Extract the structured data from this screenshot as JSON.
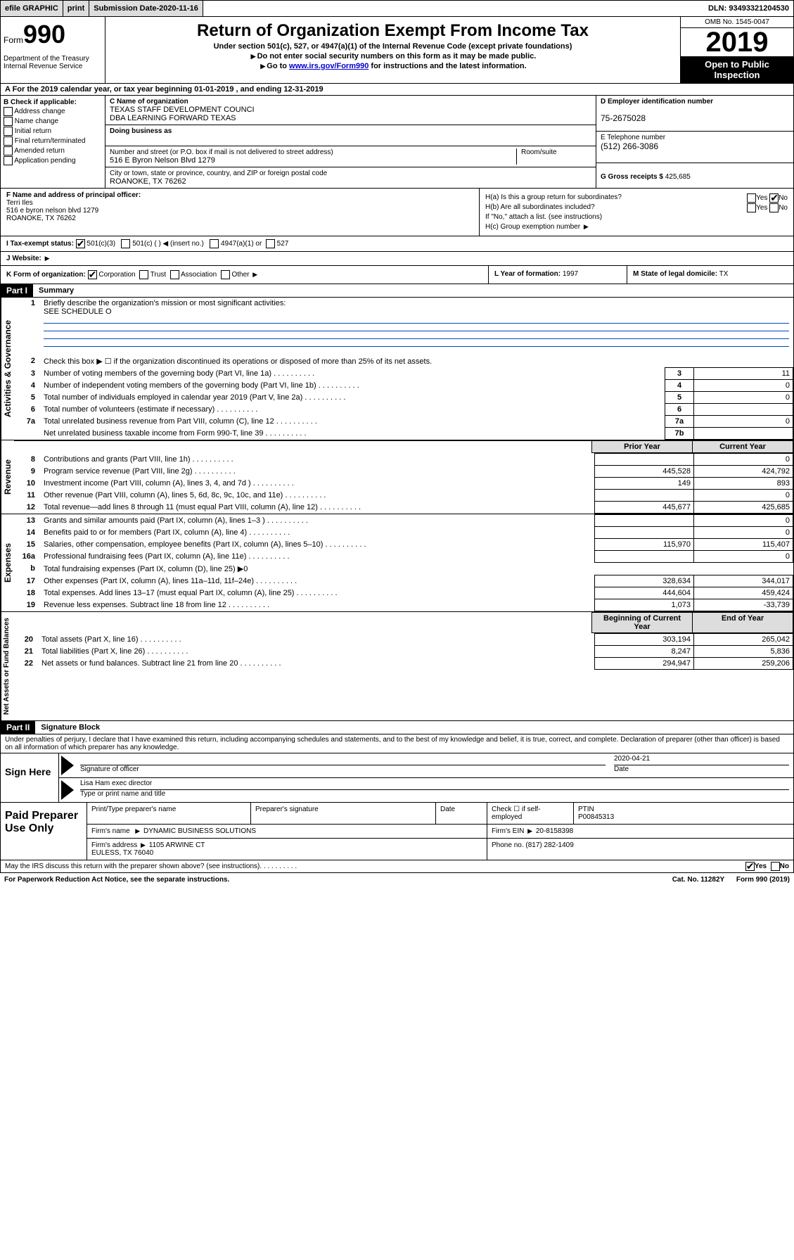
{
  "topBar": {
    "efile": "efile GRAPHIC",
    "print": "print",
    "subLabel": "Submission Date",
    "subDate": "2020-11-16",
    "dln": "DLN: 93493321204530"
  },
  "header": {
    "formWord": "Form",
    "formNum": "990",
    "dept": "Department of the Treasury\nInternal Revenue Service",
    "title": "Return of Organization Exempt From Income Tax",
    "sub1": "Under section 501(c), 527, or 4947(a)(1) of the Internal Revenue Code (except private foundations)",
    "sub2": "Do not enter social security numbers on this form as it may be made public.",
    "sub3a": "Go to ",
    "sub3link": "www.irs.gov/Form990",
    "sub3b": " for instructions and the latest information.",
    "omb": "OMB No. 1545-0047",
    "year": "2019",
    "inspect1": "Open to Public",
    "inspect2": "Inspection"
  },
  "periodRow": {
    "a": "A For the 2019 calendar year, or tax year beginning ",
    "begin": "01-01-2019",
    "mid": " , and ending ",
    "end": "12-31-2019"
  },
  "boxB": {
    "label": "B Check if applicable:",
    "opts": [
      "Address change",
      "Name change",
      "Initial return",
      "Final return/terminated",
      "Amended return",
      "Application pending"
    ]
  },
  "boxC": {
    "nameLabel": "C Name of organization",
    "name": "TEXAS STAFF DEVELOPMENT COUNCI\nDBA LEARNING FORWARD TEXAS",
    "dbaLabel": "Doing business as",
    "dba": "",
    "addrLabel": "Number and street (or P.O. box if mail is not delivered to street address)",
    "suiteLabel": "Room/suite",
    "addr": "516 E Byron Nelson Blvd 1279",
    "cityLabel": "City or town, state or province, country, and ZIP or foreign postal code",
    "city": "ROANOKE, TX  76262"
  },
  "boxDE": {
    "einLabel": "D Employer identification number",
    "ein": "75-2675028",
    "telLabel": "E Telephone number",
    "tel": "(512) 266-3086",
    "grossLabel": "G Gross receipts $",
    "gross": "425,685"
  },
  "boxF": {
    "label": "F Name and address of principal officer:",
    "name": "Terri Iles",
    "addr": "516 e byron nelson blvd 1279\nROANOKE, TX  76262"
  },
  "boxH": {
    "ha": "H(a)  Is this a group return for subordinates?",
    "haYes": "Yes",
    "haNo": "No",
    "hb": "H(b)  Are all subordinates included?",
    "hbNote": "If \"No,\" attach a list. (see instructions)",
    "hc": "H(c)  Group exemption number"
  },
  "rowI": {
    "label": "I     Tax-exempt status:",
    "opts": [
      "501(c)(3)",
      "501(c) (  )",
      "(insert no.)",
      "4947(a)(1) or",
      "527"
    ]
  },
  "rowJ": {
    "label": "J     Website:"
  },
  "rowK": {
    "label": "K Form of organization:",
    "opts": [
      "Corporation",
      "Trust",
      "Association",
      "Other"
    ],
    "yearLabel": "L Year of formation:",
    "year": "1997",
    "stateLabel": "M State of legal domicile:",
    "state": "TX"
  },
  "part1": {
    "header": "Part I",
    "title": "Summary",
    "side1": "Activities & Governance",
    "side2": "Revenue",
    "side3": "Expenses",
    "side4": "Net Assets or Fund Balances",
    "line1": "Briefly describe the organization's mission or most significant activities:",
    "line1val": "SEE SCHEDULE O",
    "line2": "Check this box ▶ ☐ if the organization discontinued its operations or disposed of more than 25% of its net assets.",
    "rows": [
      {
        "n": "3",
        "d": "Number of voting members of the governing body (Part VI, line 1a)",
        "b": "3",
        "v": "11"
      },
      {
        "n": "4",
        "d": "Number of independent voting members of the governing body (Part VI, line 1b)",
        "b": "4",
        "v": "0"
      },
      {
        "n": "5",
        "d": "Total number of individuals employed in calendar year 2019 (Part V, line 2a)",
        "b": "5",
        "v": "0"
      },
      {
        "n": "6",
        "d": "Total number of volunteers (estimate if necessary)",
        "b": "6",
        "v": ""
      },
      {
        "n": "7a",
        "d": "Total unrelated business revenue from Part VIII, column (C), line 12",
        "b": "7a",
        "v": "0"
      },
      {
        "n": "",
        "d": "Net unrelated business taxable income from Form 990-T, line 39",
        "b": "7b",
        "v": ""
      }
    ],
    "colPrior": "Prior Year",
    "colCurrent": "Current Year",
    "revRows": [
      {
        "n": "8",
        "d": "Contributions and grants (Part VIII, line 1h)",
        "p": "",
        "c": "0"
      },
      {
        "n": "9",
        "d": "Program service revenue (Part VIII, line 2g)",
        "p": "445,528",
        "c": "424,792"
      },
      {
        "n": "10",
        "d": "Investment income (Part VIII, column (A), lines 3, 4, and 7d )",
        "p": "149",
        "c": "893"
      },
      {
        "n": "11",
        "d": "Other revenue (Part VIII, column (A), lines 5, 6d, 8c, 9c, 10c, and 11e)",
        "p": "",
        "c": "0"
      },
      {
        "n": "12",
        "d": "Total revenue—add lines 8 through 11 (must equal Part VIII, column (A), line 12)",
        "p": "445,677",
        "c": "425,685"
      }
    ],
    "expRows": [
      {
        "n": "13",
        "d": "Grants and similar amounts paid (Part IX, column (A), lines 1–3 )",
        "p": "",
        "c": "0"
      },
      {
        "n": "14",
        "d": "Benefits paid to or for members (Part IX, column (A), line 4)",
        "p": "",
        "c": "0"
      },
      {
        "n": "15",
        "d": "Salaries, other compensation, employee benefits (Part IX, column (A), lines 5–10)",
        "p": "115,970",
        "c": "115,407"
      },
      {
        "n": "16a",
        "d": "Professional fundraising fees (Part IX, column (A), line 11e)",
        "p": "",
        "c": "0"
      },
      {
        "n": "b",
        "d": "Total fundraising expenses (Part IX, column (D), line 25) ▶0",
        "p": null,
        "c": null
      },
      {
        "n": "17",
        "d": "Other expenses (Part IX, column (A), lines 11a–11d, 11f–24e)",
        "p": "328,634",
        "c": "344,017"
      },
      {
        "n": "18",
        "d": "Total expenses. Add lines 13–17 (must equal Part IX, column (A), line 25)",
        "p": "444,604",
        "c": "459,424"
      },
      {
        "n": "19",
        "d": "Revenue less expenses. Subtract line 18 from line 12",
        "p": "1,073",
        "c": "-33,739"
      }
    ],
    "colBegin": "Beginning of Current Year",
    "colEnd": "End of Year",
    "netRows": [
      {
        "n": "20",
        "d": "Total assets (Part X, line 16)",
        "p": "303,194",
        "c": "265,042"
      },
      {
        "n": "21",
        "d": "Total liabilities (Part X, line 26)",
        "p": "8,247",
        "c": "5,836"
      },
      {
        "n": "22",
        "d": "Net assets or fund balances. Subtract line 21 from line 20",
        "p": "294,947",
        "c": "259,206"
      }
    ]
  },
  "part2": {
    "header": "Part II",
    "title": "Signature Block",
    "declaration": "Under penalties of perjury, I declare that I have examined this return, including accompanying schedules and statements, and to the best of my knowledge and belief, it is true, correct, and complete. Declaration of preparer (other than officer) is based on all information of which preparer has any knowledge."
  },
  "sign": {
    "label": "Sign Here",
    "sigLabel": "Signature of officer",
    "date": "2020-04-21",
    "dateLabel": "Date",
    "name": "Lisa Ham  exec director",
    "nameLabel": "Type or print name and title"
  },
  "prep": {
    "label": "Paid Preparer Use Only",
    "h1": "Print/Type preparer's name",
    "h2": "Preparer's signature",
    "h3": "Date",
    "h4": "Check ☐ if self-employed",
    "h5": "PTIN",
    "ptin": "P00845313",
    "firmLabel": "Firm's name",
    "firm": "DYNAMIC BUSINESS SOLUTIONS",
    "firmEinLabel": "Firm's EIN",
    "firmEin": "20-8158398",
    "addrLabel": "Firm's address",
    "addr": "1105 ARWINE CT\nEULESS, TX  76040",
    "phoneLabel": "Phone no.",
    "phone": "(817) 282-1409"
  },
  "footer": {
    "discuss": "May the IRS discuss this return with the preparer shown above? (see instructions)",
    "yes": "Yes",
    "no": "No",
    "paperwork": "For Paperwork Reduction Act Notice, see the separate instructions.",
    "cat": "Cat. No. 11282Y",
    "form": "Form 990 (2019)"
  }
}
